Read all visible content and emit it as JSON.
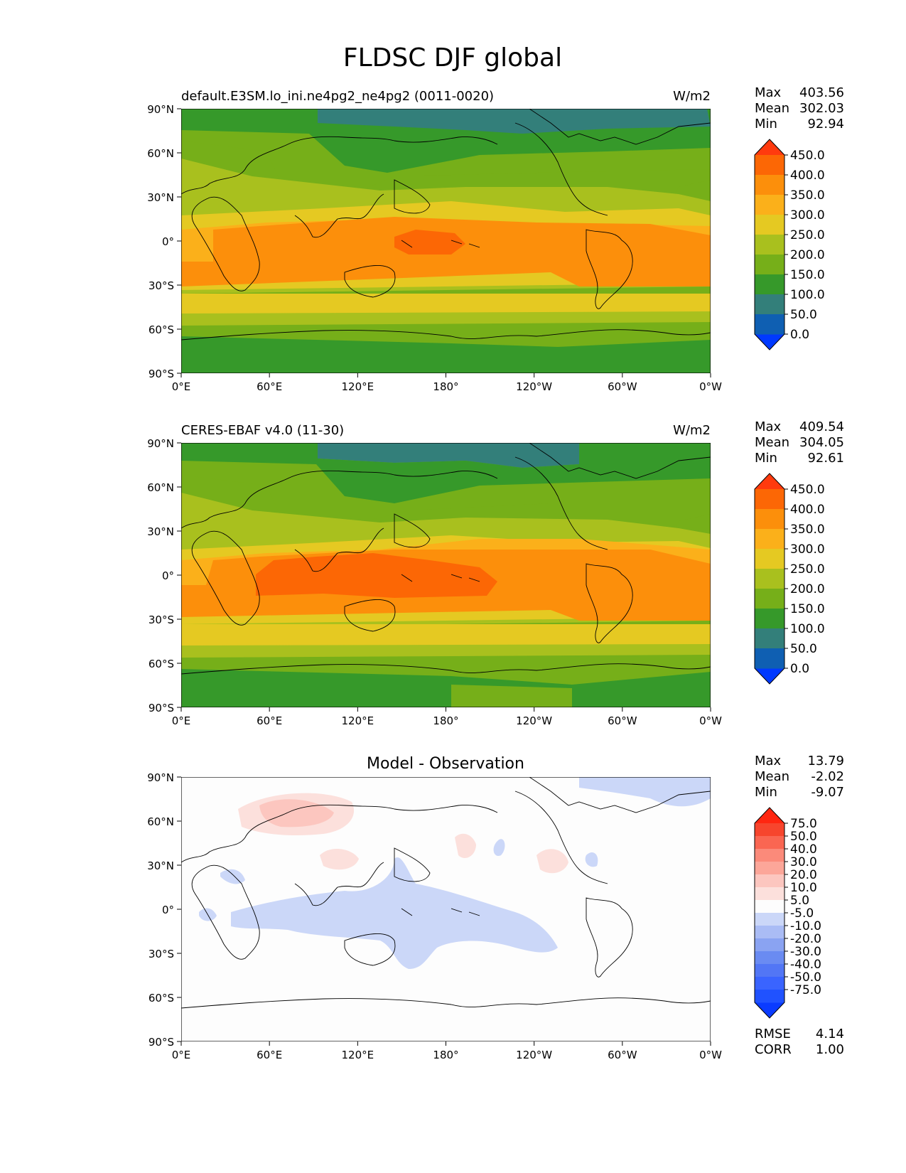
{
  "title": "FLDSC DJF global",
  "lat_ticks": [
    "90°N",
    "60°N",
    "30°N",
    "0°",
    "30°S",
    "60°S",
    "90°S"
  ],
  "lon_ticks": [
    "0°E",
    "60°E",
    "120°E",
    "180°",
    "120°W",
    "60°W",
    "0°W"
  ],
  "stat_labels": {
    "max": "Max",
    "mean": "Mean",
    "min": "Min",
    "rmse": "RMSE",
    "corr": "CORR"
  },
  "colors": {
    "abs": [
      "#0039ff",
      "#0f5fb2",
      "#337f7a",
      "#36992a",
      "#76af19",
      "#a9c01e",
      "#e5c922",
      "#fbb01a",
      "#fc8f0b",
      "#fc6705",
      "#ff3a0e"
    ],
    "diff": [
      "#0a3bff",
      "#2052ff",
      "#3a64ff",
      "#5276f5",
      "#6a8bf2",
      "#8aa3f2",
      "#aabcf5",
      "#cbd7f8",
      "#fdfdfd",
      "#fce0dc",
      "#fcc6bf",
      "#fca699",
      "#fb8a7a",
      "#fa6652",
      "#f7452d",
      "#ff2610"
    ],
    "land_line": "#000000"
  },
  "panels": [
    {
      "kind": "abs",
      "left_title": "default.E3SM.lo_ini.ne4pg2_ne4pg2 (0011-0020)",
      "center_title": "",
      "right_title": "W/m2",
      "stats": {
        "max": "403.56",
        "mean": "302.03",
        "min": "92.94"
      },
      "colorbar_labels": [
        "450.0",
        "400.0",
        "350.0",
        "300.0",
        "250.0",
        "200.0",
        "150.0",
        "100.0",
        "50.0",
        "0.0"
      ]
    },
    {
      "kind": "abs",
      "left_title": "CERES-EBAF v4.0 (11-30)",
      "center_title": "",
      "right_title": "W/m2",
      "stats": {
        "max": "409.54",
        "mean": "304.05",
        "min": "92.61"
      },
      "colorbar_labels": [
        "450.0",
        "400.0",
        "350.0",
        "300.0",
        "250.0",
        "200.0",
        "150.0",
        "100.0",
        "50.0",
        "0.0"
      ]
    },
    {
      "kind": "diff",
      "left_title": "",
      "center_title": "Model - Observation",
      "right_title": "",
      "stats": {
        "max": "13.79",
        "mean": "-2.02",
        "min": "-9.07",
        "rmse": "4.14",
        "corr": "1.00"
      },
      "colorbar_labels": [
        "75.0",
        "50.0",
        "40.0",
        "30.0",
        "20.0",
        "10.0",
        "5.0",
        "-5.0",
        "-10.0",
        "-20.0",
        "-30.0",
        "-40.0",
        "-50.0",
        "-75.0"
      ]
    }
  ]
}
